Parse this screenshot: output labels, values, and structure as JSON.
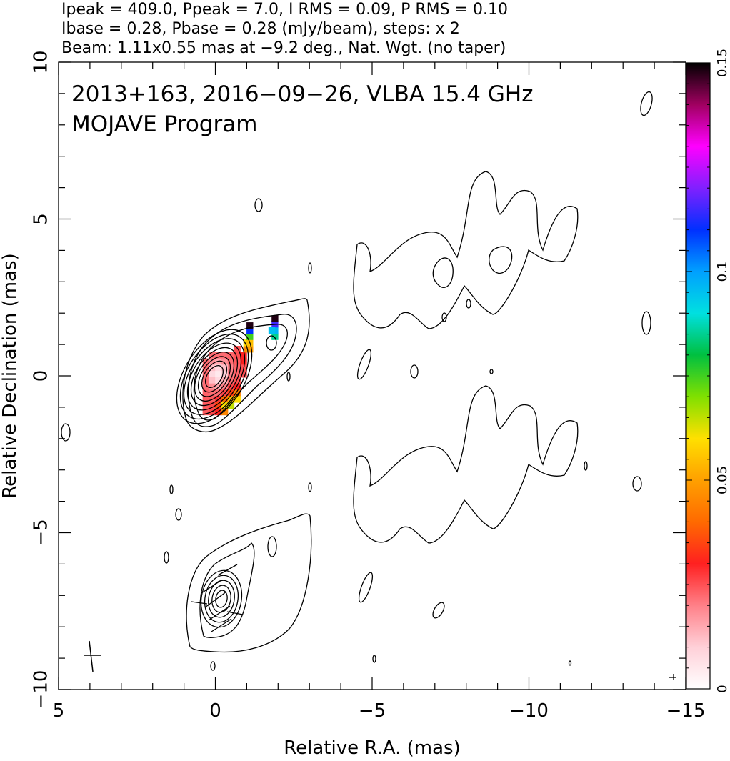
{
  "header": {
    "line1": "Ipeak = 409.0, Ppeak = 7.0, I RMS = 0.09, P RMS = 0.10",
    "line2": "Ibase = 0.28, Pbase = 0.28 (mJy/beam), steps: x 2",
    "line3": "Beam: 1.11x0.55 mas at −9.2 deg., Nat. Wgt. (no taper)"
  },
  "chart_data": {
    "type": "heatmap",
    "title": "2013+163, 2016−09−26, VLBA 15.4 GHz",
    "subtitle": "MOJAVE Program",
    "xlabel": "Relative R.A. (mas)",
    "ylabel": "Relative Declination (mas)",
    "xlim": [
      5,
      -15
    ],
    "ylim": [
      -10,
      10
    ],
    "x_ticks": [
      5,
      0,
      -5,
      -10,
      -15
    ],
    "x_tick_labels": [
      "5",
      "0",
      "−5",
      "−10",
      "−15"
    ],
    "y_ticks": [
      10,
      5,
      0,
      -5,
      -10
    ],
    "y_tick_labels": [
      "10",
      "5",
      "0",
      "−5",
      "−10"
    ],
    "colorbar": {
      "range": [
        0,
        0.15
      ],
      "ticks": [
        0,
        0.05,
        0.1,
        0.15
      ],
      "tick_labels": [
        "0",
        "0.05",
        "0.1",
        "0.15"
      ],
      "palette": [
        "#ffffff",
        "#ffd0d8",
        "#ff8088",
        "#ff2020",
        "#ff6a00",
        "#ffa000",
        "#ffe000",
        "#80e000",
        "#00c040",
        "#00e0e0",
        "#00a0ff",
        "#0030ff",
        "#8020ff",
        "#ff00ff",
        "#a00060",
        "#000000"
      ]
    },
    "polarization_pixels": [
      {
        "x": 0.1,
        "y": 0.65,
        "value": 0.022
      },
      {
        "x": -0.1,
        "y": 0.65,
        "value": 0.022
      },
      {
        "x": -0.3,
        "y": 0.65,
        "value": 0.022
      },
      {
        "x": -0.5,
        "y": 0.65,
        "value": 0.023
      },
      {
        "x": -0.7,
        "y": 0.65,
        "value": 0.025
      },
      {
        "x": -0.9,
        "y": 0.45,
        "value": 0.03
      },
      {
        "x": 0.3,
        "y": 0.45,
        "value": 0.022
      },
      {
        "x": 0.1,
        "y": 0.45,
        "value": 0.018
      },
      {
        "x": -0.1,
        "y": 0.45,
        "value": 0.015
      },
      {
        "x": -0.3,
        "y": 0.45,
        "value": 0.018
      },
      {
        "x": -0.5,
        "y": 0.45,
        "value": 0.022
      },
      {
        "x": -0.7,
        "y": 0.45,
        "value": 0.024
      },
      {
        "x": 0.3,
        "y": 0.25,
        "value": 0.022
      },
      {
        "x": 0.1,
        "y": 0.25,
        "value": 0.012
      },
      {
        "x": -0.1,
        "y": 0.25,
        "value": 0.008
      },
      {
        "x": -0.3,
        "y": 0.25,
        "value": 0.012
      },
      {
        "x": -0.5,
        "y": 0.25,
        "value": 0.02
      },
      {
        "x": -0.7,
        "y": 0.25,
        "value": 0.023
      },
      {
        "x": -0.9,
        "y": 0.25,
        "value": 0.025
      },
      {
        "x": 0.3,
        "y": 0.05,
        "value": 0.022
      },
      {
        "x": 0.1,
        "y": 0.05,
        "value": 0.008
      },
      {
        "x": -0.1,
        "y": 0.05,
        "value": 0.005
      },
      {
        "x": -0.3,
        "y": 0.05,
        "value": 0.01
      },
      {
        "x": -0.5,
        "y": 0.05,
        "value": 0.02
      },
      {
        "x": -0.7,
        "y": 0.05,
        "value": 0.023
      },
      {
        "x": -0.9,
        "y": 0.05,
        "value": 0.025
      },
      {
        "x": 0.3,
        "y": -0.15,
        "value": 0.022
      },
      {
        "x": 0.1,
        "y": -0.15,
        "value": 0.012
      },
      {
        "x": -0.1,
        "y": -0.15,
        "value": 0.008
      },
      {
        "x": -0.3,
        "y": -0.15,
        "value": 0.014
      },
      {
        "x": -0.5,
        "y": -0.15,
        "value": 0.022
      },
      {
        "x": -0.7,
        "y": -0.15,
        "value": 0.025
      },
      {
        "x": 0.3,
        "y": -0.35,
        "value": 0.022
      },
      {
        "x": 0.1,
        "y": -0.35,
        "value": 0.018
      },
      {
        "x": -0.1,
        "y": -0.35,
        "value": 0.015
      },
      {
        "x": -0.3,
        "y": -0.35,
        "value": 0.02
      },
      {
        "x": -0.5,
        "y": -0.35,
        "value": 0.026
      },
      {
        "x": -0.7,
        "y": -0.35,
        "value": 0.03
      },
      {
        "x": 0.3,
        "y": -0.55,
        "value": 0.023
      },
      {
        "x": 0.1,
        "y": -0.55,
        "value": 0.022
      },
      {
        "x": -0.1,
        "y": -0.55,
        "value": 0.022
      },
      {
        "x": -0.3,
        "y": -0.55,
        "value": 0.026
      },
      {
        "x": -0.5,
        "y": -0.55,
        "value": 0.034
      },
      {
        "x": -0.7,
        "y": -0.55,
        "value": 0.044
      },
      {
        "x": 0.3,
        "y": -0.75,
        "value": 0.024
      },
      {
        "x": 0.1,
        "y": -0.75,
        "value": 0.024
      },
      {
        "x": -0.1,
        "y": -0.75,
        "value": 0.028
      },
      {
        "x": -0.3,
        "y": -0.75,
        "value": 0.04
      },
      {
        "x": -0.5,
        "y": -0.75,
        "value": 0.055
      },
      {
        "x": -0.7,
        "y": -0.75,
        "value": 0.06
      },
      {
        "x": 0.3,
        "y": -0.95,
        "value": 0.024
      },
      {
        "x": 0.1,
        "y": -0.95,
        "value": 0.026
      },
      {
        "x": -0.1,
        "y": -0.95,
        "value": 0.035
      },
      {
        "x": -0.3,
        "y": -0.95,
        "value": 0.06
      },
      {
        "x": -0.5,
        "y": -0.95,
        "value": 0.065
      },
      {
        "x": 0.3,
        "y": -1.15,
        "value": 0.024
      },
      {
        "x": 0.1,
        "y": -1.15,
        "value": 0.026
      },
      {
        "x": -0.1,
        "y": -1.15,
        "value": 0.03
      },
      {
        "x": -0.3,
        "y": -1.15,
        "value": 0.045
      },
      {
        "x": -0.7,
        "y": 0.85,
        "value": 0.025
      },
      {
        "x": -0.9,
        "y": 0.65,
        "value": 0.03
      },
      {
        "x": -1.0,
        "y": 0.85,
        "value": 0.045
      },
      {
        "x": -1.0,
        "y": 1.05,
        "value": 0.06
      },
      {
        "x": -1.1,
        "y": 0.85,
        "value": 0.05
      },
      {
        "x": -1.1,
        "y": 1.05,
        "value": 0.055
      },
      {
        "x": -1.1,
        "y": 1.25,
        "value": 0.075
      },
      {
        "x": -1.1,
        "y": 1.45,
        "value": 0.11
      },
      {
        "x": -1.1,
        "y": 1.6,
        "value": 0.148
      },
      {
        "x": -1.9,
        "y": 1.25,
        "value": 0.085
      },
      {
        "x": -1.9,
        "y": 1.45,
        "value": 0.097
      },
      {
        "x": -1.9,
        "y": 1.65,
        "value": 0.115
      },
      {
        "x": -1.9,
        "y": 1.82,
        "value": 0.148
      },
      {
        "x": -1.8,
        "y": 1.45,
        "value": 0.095
      }
    ],
    "intensity_contours": [
      {
        "panel": "stokes-I",
        "center": [
          0,
          0
        ],
        "semi_axes": [
          0.9,
          1.7
        ],
        "rotation_deg": 30
      },
      {
        "panel": "stokes-I",
        "center": [
          0,
          0
        ],
        "semi_axes": [
          1.5,
          2.5
        ],
        "rotation_deg": 36
      },
      {
        "panel": "stokes-I",
        "center": [
          -0.85,
          0.7
        ],
        "semi_axes": [
          2.4,
          1.35
        ],
        "rotation_deg": -30
      }
    ]
  }
}
